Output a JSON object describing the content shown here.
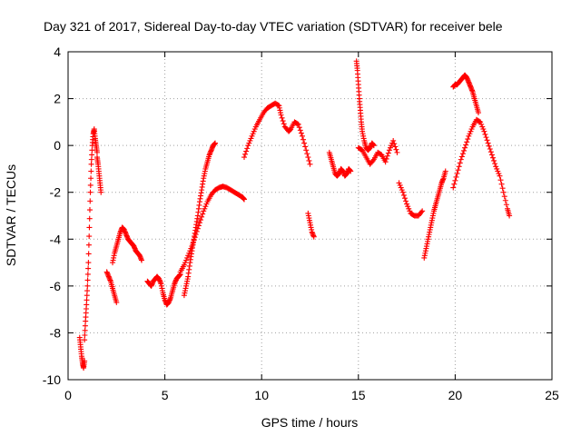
{
  "chart_data": {
    "type": "scatter",
    "title": "Day 321 of 2017, Sidereal Day-to-day VTEC variation (SDTVAR) for receiver bele",
    "xlabel": "GPS time / hours",
    "ylabel": "SDTVAR / TECUs",
    "xlim": [
      0,
      25
    ],
    "ylim": [
      -10,
      4
    ],
    "xticks": [
      0,
      5,
      10,
      15,
      20,
      25
    ],
    "xtick_labels": [
      "0",
      "5",
      "10",
      "15",
      "20",
      "25"
    ],
    "yticks": [
      -10,
      -8,
      -6,
      -4,
      -2,
      0,
      2,
      4
    ],
    "ytick_labels": [
      "-10",
      "-8",
      "-6",
      "-4",
      "-2",
      "0",
      "2",
      "4"
    ],
    "grid": true,
    "marker": "+",
    "color": "#ff0000",
    "segments": [
      {
        "name": "seg-early-drop",
        "x": [
          0.6,
          0.65,
          0.7,
          0.75,
          0.8,
          0.85
        ],
        "y": [
          -8.2,
          -8.6,
          -9.0,
          -9.3,
          -9.5,
          -9.2
        ]
      },
      {
        "name": "seg-early-rise",
        "x": [
          0.85,
          0.9,
          0.95,
          1.0,
          1.05,
          1.1,
          1.15,
          1.2,
          1.25,
          1.3,
          1.35,
          1.4,
          1.45,
          1.5
        ],
        "y": [
          -8.3,
          -7.5,
          -6.8,
          -6.0,
          -5.0,
          -3.5,
          -2.0,
          -0.8,
          0.0,
          0.5,
          0.7,
          0.3,
          0.0,
          -0.3
        ]
      },
      {
        "name": "seg-early-tail",
        "x": [
          1.5,
          1.55,
          1.6,
          1.65,
          1.7
        ],
        "y": [
          -0.5,
          -0.8,
          -1.2,
          -1.6,
          -2.0
        ]
      },
      {
        "name": "seg-dip-1",
        "x": [
          2.0,
          2.1,
          2.2,
          2.3,
          2.4,
          2.5
        ],
        "y": [
          -5.4,
          -5.6,
          -5.8,
          -6.1,
          -6.4,
          -6.7
        ]
      },
      {
        "name": "seg-bump-1",
        "x": [
          2.3,
          2.4,
          2.5,
          2.6,
          2.7,
          2.8,
          2.9,
          3.0,
          3.1,
          3.2,
          3.3,
          3.4,
          3.5,
          3.6,
          3.7,
          3.8
        ],
        "y": [
          -5.0,
          -4.6,
          -4.3,
          -4.0,
          -3.7,
          -3.5,
          -3.6,
          -3.8,
          -4.0,
          -4.1,
          -4.2,
          -4.3,
          -4.5,
          -4.6,
          -4.7,
          -4.9
        ]
      },
      {
        "name": "seg-trough",
        "x": [
          4.1,
          4.2,
          4.3,
          4.4,
          4.5,
          4.6,
          4.7,
          4.8,
          4.9,
          5.0,
          5.1,
          5.2,
          5.3,
          5.4,
          5.5,
          5.6,
          5.7,
          5.8
        ],
        "y": [
          -5.8,
          -5.9,
          -6.0,
          -5.8,
          -5.7,
          -5.6,
          -5.7,
          -5.9,
          -6.3,
          -6.6,
          -6.8,
          -6.7,
          -6.5,
          -6.2,
          -5.9,
          -5.7,
          -5.6,
          -5.5
        ]
      },
      {
        "name": "seg-rise-a",
        "x": [
          5.8,
          6.0,
          6.2,
          6.4,
          6.6,
          6.8,
          7.0,
          7.2,
          7.4,
          7.6,
          7.8,
          8.0,
          8.2,
          8.4,
          8.6,
          8.8,
          9.0,
          9.1
        ],
        "y": [
          -5.4,
          -5.1,
          -4.7,
          -4.3,
          -3.8,
          -3.3,
          -2.8,
          -2.4,
          -2.1,
          -1.9,
          -1.8,
          -1.75,
          -1.8,
          -1.9,
          -2.0,
          -2.1,
          -2.2,
          -2.3
        ]
      },
      {
        "name": "seg-rise-b",
        "x": [
          6.0,
          6.1,
          6.2,
          6.3,
          6.4,
          6.5,
          6.6,
          6.7,
          6.8,
          6.9,
          7.0,
          7.1,
          7.2,
          7.3,
          7.4,
          7.5,
          7.6
        ],
        "y": [
          -6.4,
          -6.0,
          -5.6,
          -5.0,
          -4.5,
          -4.0,
          -3.5,
          -3.0,
          -2.4,
          -1.9,
          -1.4,
          -1.0,
          -0.7,
          -0.4,
          -0.2,
          0.0,
          0.1
        ]
      },
      {
        "name": "seg-mid-peak",
        "x": [
          9.1,
          9.3,
          9.5,
          9.7,
          9.9,
          10.1,
          10.3,
          10.5,
          10.7,
          10.9,
          11.0,
          11.2,
          11.4,
          11.5,
          11.7,
          11.9,
          12.1,
          12.3,
          12.5
        ],
        "y": [
          -0.5,
          0.0,
          0.4,
          0.8,
          1.1,
          1.4,
          1.6,
          1.7,
          1.8,
          1.7,
          1.3,
          0.8,
          0.6,
          0.7,
          1.0,
          0.9,
          0.4,
          -0.2,
          -0.8
        ]
      },
      {
        "name": "seg-mid-drop",
        "x": [
          12.4,
          12.5,
          12.6,
          12.7
        ],
        "y": [
          -2.9,
          -3.3,
          -3.7,
          -3.9
        ]
      },
      {
        "name": "seg-hump-2",
        "x": [
          13.5,
          13.6,
          13.7,
          13.8,
          13.9,
          14.0,
          14.1,
          14.2,
          14.3,
          14.4,
          14.5,
          14.6
        ],
        "y": [
          -0.3,
          -0.6,
          -0.9,
          -1.2,
          -1.3,
          -1.2,
          -1.0,
          -1.1,
          -1.3,
          -1.2,
          -1.0,
          -1.1
        ]
      },
      {
        "name": "seg-spike",
        "x": [
          14.9,
          14.95,
          15.0,
          15.05,
          15.1,
          15.15,
          15.2,
          15.3,
          15.4,
          15.5,
          15.6,
          15.7,
          15.8
        ],
        "y": [
          3.6,
          3.2,
          2.6,
          2.0,
          1.5,
          1.0,
          0.6,
          0.2,
          -0.1,
          -0.2,
          -0.1,
          0.1,
          0.0
        ]
      },
      {
        "name": "seg-wobble",
        "x": [
          15.0,
          15.2,
          15.4,
          15.6,
          15.8,
          16.0,
          16.2,
          16.4,
          16.6,
          16.8,
          17.0
        ],
        "y": [
          -0.1,
          -0.2,
          -0.5,
          -0.8,
          -0.6,
          -0.3,
          -0.4,
          -0.7,
          -0.2,
          0.2,
          -0.3
        ]
      },
      {
        "name": "seg-dip-2",
        "x": [
          17.1,
          17.3,
          17.5,
          17.7,
          17.9,
          18.1,
          18.3
        ],
        "y": [
          -1.6,
          -2.0,
          -2.5,
          -2.9,
          -3.0,
          -3.0,
          -2.8
        ]
      },
      {
        "name": "seg-rise-2",
        "x": [
          18.4,
          18.5,
          18.6,
          18.7,
          18.8,
          18.9,
          19.0,
          19.1,
          19.2,
          19.3,
          19.4,
          19.5
        ],
        "y": [
          -4.8,
          -4.4,
          -4.0,
          -3.6,
          -3.2,
          -2.8,
          -2.5,
          -2.2,
          -1.9,
          -1.6,
          -1.4,
          -1.1
        ]
      },
      {
        "name": "seg-late-a",
        "x": [
          19.9,
          20.0,
          20.1,
          20.2,
          20.3,
          20.4,
          20.5,
          20.6,
          20.7,
          20.8,
          20.9,
          21.0,
          21.1,
          21.2
        ],
        "y": [
          2.5,
          2.6,
          2.6,
          2.7,
          2.8,
          2.9,
          3.0,
          2.9,
          2.7,
          2.5,
          2.3,
          2.0,
          1.7,
          1.4
        ]
      },
      {
        "name": "seg-late-b",
        "x": [
          19.9,
          20.1,
          20.3,
          20.5,
          20.7,
          20.9,
          21.1,
          21.3,
          21.5,
          21.7,
          21.9,
          22.1,
          22.3,
          22.5,
          22.7,
          22.8
        ],
        "y": [
          -1.8,
          -1.2,
          -0.6,
          -0.1,
          0.4,
          0.8,
          1.1,
          1.0,
          0.6,
          0.1,
          -0.4,
          -0.9,
          -1.3,
          -2.0,
          -2.7,
          -3.0
        ]
      }
    ]
  }
}
